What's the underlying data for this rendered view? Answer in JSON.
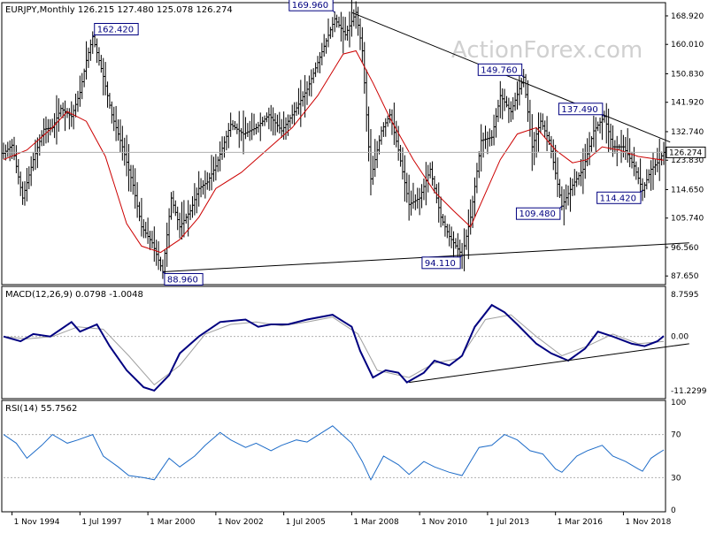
{
  "header": {
    "price": "EURJPY,Monthly  126.215 127.480 125.078 126.274",
    "macd": "MACD(12,26,9) 0.0798 -1.0048",
    "rsi": "RSI(14) 55.7562"
  },
  "watermark": "ActionForex.com",
  "colors": {
    "bar": "#000000",
    "ma": "#cc0000",
    "macd_line": "#000080",
    "macd_signal": "#a0a0a0",
    "rsi": "#1e6cc8",
    "trendline": "#000000",
    "callout": "#000080",
    "level_line": "#b0b0b0"
  },
  "chart_data": [
    {
      "type": "ohlc",
      "title": "EURJPY,Monthly",
      "last_value": "126.274",
      "y_ticks": [
        "168.920",
        "160.010",
        "150.830",
        "141.920",
        "132.740",
        "123.830",
        "114.650",
        "105.740",
        "96.560",
        "87.650"
      ],
      "ylim": [
        85.5,
        172.5
      ],
      "x_ticks": [
        "1 Nov 1994",
        "1 Jul 1997",
        "1 Mar 2000",
        "1 Nov 2002",
        "1 Jul 2005",
        "1 Mar 2008",
        "1 Nov 2010",
        "1 Jul 2013",
        "1 Mar 2016",
        "1 Nov 2018"
      ],
      "x_tick_dates": [
        "1994-11",
        "1997-07",
        "2000-03",
        "2002-11",
        "2005-07",
        "2008-03",
        "2010-11",
        "2013-07",
        "2016-03",
        "2018-11"
      ],
      "xlim": [
        "1994-07",
        "2020-06"
      ],
      "price_path": [
        [
          "1994-07",
          126.0
        ],
        [
          "1994-11",
          128.5
        ],
        [
          "1995-04",
          112.0
        ],
        [
          "1995-09",
          124.0
        ],
        [
          "1996-02",
          133.5
        ],
        [
          "1996-06",
          134.0
        ],
        [
          "1996-10",
          140.0
        ],
        [
          "1997-03",
          137.5
        ],
        [
          "1997-07",
          145.0
        ],
        [
          "1997-10",
          155.0
        ],
        [
          "1998-01",
          162.4
        ],
        [
          "1998-06",
          150.0
        ],
        [
          "1998-10",
          138.0
        ],
        [
          "1999-03",
          128.0
        ],
        [
          "1999-08",
          116.0
        ],
        [
          "1999-12",
          103.0
        ],
        [
          "2000-05",
          98.0
        ],
        [
          "2000-10",
          89.0
        ],
        [
          "2001-02",
          112.0
        ],
        [
          "2001-06",
          103.0
        ],
        [
          "2001-11",
          108.0
        ],
        [
          "2002-03",
          115.0
        ],
        [
          "2002-07",
          117.0
        ],
        [
          "2002-11",
          122.0
        ],
        [
          "2003-06",
          135.0
        ],
        [
          "2003-12",
          132.0
        ],
        [
          "2004-06",
          134.0
        ],
        [
          "2004-12",
          138.0
        ],
        [
          "2005-06",
          133.0
        ],
        [
          "2005-12",
          139.0
        ],
        [
          "2006-06",
          146.0
        ],
        [
          "2006-12",
          156.0
        ],
        [
          "2007-07",
          168.0
        ],
        [
          "2007-12",
          163.0
        ],
        [
          "2008-05",
          170.0
        ],
        [
          "2008-08",
          158.0
        ],
        [
          "2008-12",
          118.0
        ],
        [
          "2009-05",
          133.0
        ],
        [
          "2009-09",
          138.0
        ],
        [
          "2010-01",
          127.0
        ],
        [
          "2010-06",
          110.0
        ],
        [
          "2010-11",
          112.0
        ],
        [
          "2011-04",
          121.0
        ],
        [
          "2011-09",
          106.0
        ],
        [
          "2012-01",
          100.0
        ],
        [
          "2012-07",
          94.1
        ],
        [
          "2012-11",
          106.0
        ],
        [
          "2013-04",
          130.0
        ],
        [
          "2013-09",
          131.0
        ],
        [
          "2014-01",
          144.0
        ],
        [
          "2014-06",
          139.0
        ],
        [
          "2014-12",
          149.76
        ],
        [
          "2015-04",
          128.0
        ],
        [
          "2015-08",
          136.0
        ],
        [
          "2015-12",
          130.0
        ],
        [
          "2016-06",
          109.48
        ],
        [
          "2016-11",
          116.0
        ],
        [
          "2017-04",
          121.0
        ],
        [
          "2017-09",
          133.0
        ],
        [
          "2018-02",
          137.49
        ],
        [
          "2018-06",
          128.0
        ],
        [
          "2018-11",
          128.0
        ],
        [
          "2019-04",
          122.0
        ],
        [
          "2019-08",
          114.42
        ],
        [
          "2019-12",
          121.0
        ],
        [
          "2020-03",
          123.0
        ],
        [
          "2020-06",
          126.274
        ]
      ],
      "moving_average": [
        [
          "1994-07",
          124.0
        ],
        [
          "1995-06",
          127.0
        ],
        [
          "1996-06",
          134.0
        ],
        [
          "1997-01",
          139.0
        ],
        [
          "1997-10",
          136.0
        ],
        [
          "1998-07",
          125.0
        ],
        [
          "1999-05",
          104.0
        ],
        [
          "1999-12",
          97.0
        ],
        [
          "2000-09",
          95.0
        ],
        [
          "2001-06",
          99.0
        ],
        [
          "2002-03",
          106.0
        ],
        [
          "2002-11",
          115.0
        ],
        [
          "2003-11",
          120.0
        ],
        [
          "2004-11",
          127.0
        ],
        [
          "2005-11",
          134.0
        ],
        [
          "2006-11",
          144.0
        ],
        [
          "2007-11",
          157.0
        ],
        [
          "2008-05",
          158.0
        ],
        [
          "2009-01",
          148.0
        ],
        [
          "2009-09",
          137.0
        ],
        [
          "2010-08",
          124.0
        ],
        [
          "2011-06",
          114.0
        ],
        [
          "2012-03",
          108.0
        ],
        [
          "2012-11",
          103.0
        ],
        [
          "2013-05",
          112.0
        ],
        [
          "2014-01",
          124.0
        ],
        [
          "2014-09",
          132.0
        ],
        [
          "2015-06",
          134.0
        ],
        [
          "2016-03",
          127.0
        ],
        [
          "2016-11",
          123.0
        ],
        [
          "2017-06",
          124.0
        ],
        [
          "2018-01",
          128.0
        ],
        [
          "2018-09",
          127.0
        ],
        [
          "2019-06",
          125.0
        ],
        [
          "2020-06",
          123.8
        ]
      ],
      "annotations": [
        {
          "label": "162.420",
          "date": "1998-01",
          "value": 162.42,
          "side": "top-right"
        },
        {
          "label": "169.960",
          "date": "2007-07",
          "value": 169.96,
          "side": "top-left"
        },
        {
          "label": "149.760",
          "date": "2014-12",
          "value": 149.76,
          "side": "top-left"
        },
        {
          "label": "137.490",
          "date": "2018-02",
          "value": 137.49,
          "side": "top-left"
        },
        {
          "label": "88.960",
          "date": "2000-10",
          "value": 88.96,
          "side": "bottom-right"
        },
        {
          "label": "94.110",
          "date": "2012-07",
          "value": 94.11,
          "side": "bottom-left"
        },
        {
          "label": "109.480",
          "date": "2016-06",
          "value": 109.48,
          "side": "bottom-left"
        },
        {
          "label": "114.420",
          "date": "2019-08",
          "value": 114.42,
          "side": "bottom-left"
        }
      ],
      "trendlines": [
        {
          "from": [
            "2008-03",
            169.96
          ],
          "to": [
            "2020-09",
            129.5
          ]
        },
        {
          "from": [
            "2000-10",
            88.96
          ],
          "to": [
            "2021-06",
            98.0
          ]
        }
      ]
    },
    {
      "type": "line",
      "title": "MACD(12,26,9) 0.0798 -1.0048",
      "y_ticks": [
        "8.7595",
        "0.00",
        "-11.2299"
      ],
      "ylim": [
        -12.5,
        10.0
      ],
      "zero_value": "0.00",
      "series": [
        {
          "name": "macd",
          "values": [
            [
              "1994-07",
              0.0
            ],
            [
              "1995-03",
              -1.0
            ],
            [
              "1995-09",
              0.5
            ],
            [
              "1996-05",
              0.0
            ],
            [
              "1997-03",
              3.0
            ],
            [
              "1997-07",
              1.0
            ],
            [
              "1998-03",
              2.5
            ],
            [
              "1998-09",
              -2.0
            ],
            [
              "1999-05",
              -7.0
            ],
            [
              "2000-01",
              -10.5
            ],
            [
              "2000-06",
              -11.2
            ],
            [
              "2001-01",
              -8.0
            ],
            [
              "2001-06",
              -3.5
            ],
            [
              "2002-03",
              0.0
            ],
            [
              "2003-01",
              3.0
            ],
            [
              "2004-01",
              3.5
            ],
            [
              "2004-07",
              2.0
            ],
            [
              "2005-01",
              2.5
            ],
            [
              "2005-09",
              2.5
            ],
            [
              "2006-06",
              3.5
            ],
            [
              "2007-06",
              4.5
            ],
            [
              "2008-03",
              2.0
            ],
            [
              "2008-07",
              -3.0
            ],
            [
              "2009-01",
              -8.5
            ],
            [
              "2009-07",
              -7.0
            ],
            [
              "2010-01",
              -7.5
            ],
            [
              "2010-05",
              -9.5
            ],
            [
              "2011-01",
              -7.5
            ],
            [
              "2011-06",
              -5.0
            ],
            [
              "2012-01",
              -6.0
            ],
            [
              "2012-07",
              -4.0
            ],
            [
              "2013-01",
              2.0
            ],
            [
              "2013-09",
              6.5
            ],
            [
              "2014-03",
              5.0
            ],
            [
              "2014-09",
              2.5
            ],
            [
              "2015-06",
              -1.5
            ],
            [
              "2016-01",
              -3.5
            ],
            [
              "2016-09",
              -5.0
            ],
            [
              "2017-05",
              -2.5
            ],
            [
              "2017-11",
              1.0
            ],
            [
              "2018-06",
              0.0
            ],
            [
              "2019-03",
              -1.5
            ],
            [
              "2019-09",
              -2.0
            ],
            [
              "2020-03",
              -1.0
            ],
            [
              "2020-06",
              0.0798
            ]
          ]
        },
        {
          "name": "signal",
          "values": [
            [
              "1994-07",
              0.0
            ],
            [
              "1995-06",
              -0.5
            ],
            [
              "1996-06",
              0.0
            ],
            [
              "1997-06",
              2.0
            ],
            [
              "1998-06",
              1.5
            ],
            [
              "1999-06",
              -4.0
            ],
            [
              "2000-06",
              -10.0
            ],
            [
              "2001-06",
              -6.0
            ],
            [
              "2002-06",
              0.5
            ],
            [
              "2003-06",
              2.5
            ],
            [
              "2004-06",
              3.0
            ],
            [
              "2005-06",
              2.2
            ],
            [
              "2006-06",
              3.0
            ],
            [
              "2007-06",
              4.0
            ],
            [
              "2008-06",
              0.5
            ],
            [
              "2009-03",
              -7.0
            ],
            [
              "2010-06",
              -8.5
            ],
            [
              "2011-06",
              -5.5
            ],
            [
              "2012-06",
              -4.5
            ],
            [
              "2013-06",
              3.5
            ],
            [
              "2014-06",
              4.5
            ],
            [
              "2015-06",
              0.0
            ],
            [
              "2016-06",
              -4.0
            ],
            [
              "2017-06",
              -2.0
            ],
            [
              "2018-06",
              0.5
            ],
            [
              "2019-06",
              -1.5
            ],
            [
              "2020-06",
              -1.0048
            ]
          ]
        }
      ],
      "trendlines": [
        {
          "from": [
            "2010-06",
            -9.5
          ],
          "to": [
            "2021-06",
            -1.5
          ]
        }
      ]
    },
    {
      "type": "line",
      "title": "RSI(14) 55.7562",
      "y_ticks": [
        "100",
        "70",
        "30",
        "0"
      ],
      "ylim": [
        0,
        100
      ],
      "levels": [
        70,
        30
      ],
      "series": [
        {
          "name": "rsi",
          "values": [
            [
              "1994-07",
              70.0
            ],
            [
              "1995-01",
              62.0
            ],
            [
              "1995-06",
              48.0
            ],
            [
              "1996-01",
              60.0
            ],
            [
              "1996-06",
              70.0
            ],
            [
              "1997-01",
              62.0
            ],
            [
              "1997-06",
              65.0
            ],
            [
              "1998-01",
              70.0
            ],
            [
              "1998-06",
              50.0
            ],
            [
              "1999-01",
              40.0
            ],
            [
              "1999-06",
              32.0
            ],
            [
              "2000-01",
              30.0
            ],
            [
              "2000-06",
              28.0
            ],
            [
              "2001-01",
              48.0
            ],
            [
              "2001-06",
              40.0
            ],
            [
              "2002-01",
              50.0
            ],
            [
              "2002-06",
              60.0
            ],
            [
              "2003-01",
              72.0
            ],
            [
              "2003-06",
              65.0
            ],
            [
              "2004-01",
              58.0
            ],
            [
              "2004-06",
              62.0
            ],
            [
              "2005-01",
              55.0
            ],
            [
              "2005-06",
              60.0
            ],
            [
              "2006-01",
              65.0
            ],
            [
              "2006-06",
              63.0
            ],
            [
              "2007-06",
              78.0
            ],
            [
              "2008-03",
              62.0
            ],
            [
              "2008-08",
              45.0
            ],
            [
              "2008-12",
              28.0
            ],
            [
              "2009-06",
              50.0
            ],
            [
              "2010-01",
              42.0
            ],
            [
              "2010-06",
              33.0
            ],
            [
              "2011-01",
              45.0
            ],
            [
              "2011-06",
              40.0
            ],
            [
              "2012-01",
              35.0
            ],
            [
              "2012-07",
              32.0
            ],
            [
              "2013-03",
              58.0
            ],
            [
              "2013-09",
              60.0
            ],
            [
              "2014-03",
              70.0
            ],
            [
              "2014-09",
              65.0
            ],
            [
              "2015-03",
              55.0
            ],
            [
              "2015-09",
              52.0
            ],
            [
              "2016-03",
              38.0
            ],
            [
              "2016-06",
              35.0
            ],
            [
              "2017-01",
              50.0
            ],
            [
              "2017-06",
              55.0
            ],
            [
              "2018-01",
              60.0
            ],
            [
              "2018-06",
              50.0
            ],
            [
              "2018-12",
              45.0
            ],
            [
              "2019-06",
              38.0
            ],
            [
              "2019-08",
              36.0
            ],
            [
              "2019-12",
              48.0
            ],
            [
              "2020-03",
              52.0
            ],
            [
              "2020-06",
              55.7562
            ]
          ]
        }
      ]
    }
  ]
}
